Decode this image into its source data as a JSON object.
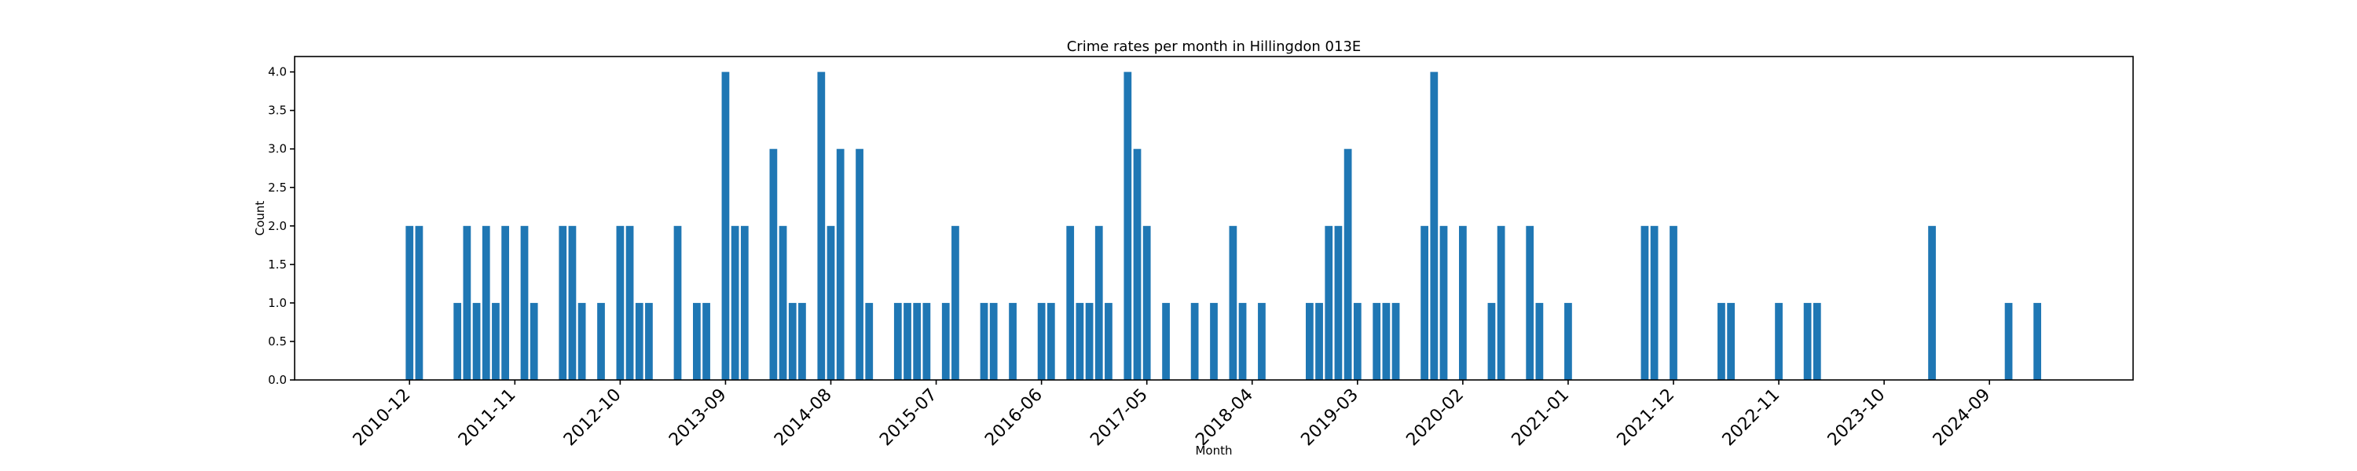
{
  "chart_data": {
    "type": "bar",
    "title": "Crime rates per month in Hillingdon 013E",
    "xlabel": "Month",
    "ylabel": "Count",
    "ylim": [
      0,
      4.2
    ],
    "yticks": [
      "0.0",
      "0.5",
      "1.0",
      "1.5",
      "2.0",
      "2.5",
      "3.0",
      "3.5",
      "4.0"
    ],
    "xticks": [
      "2010-12",
      "2011-11",
      "2012-10",
      "2013-09",
      "2014-08",
      "2015-07",
      "2016-06",
      "2017-05",
      "2018-04",
      "2019-03",
      "2020-02",
      "2021-01",
      "2021-12",
      "2022-11",
      "2023-10",
      "2024-09"
    ],
    "xlim": [
      "2009-12",
      "2025-12"
    ],
    "grid": false,
    "color": "#1f77b4",
    "x": [
      "2010-12",
      "2011-01",
      "2011-05",
      "2011-06",
      "2011-07",
      "2011-08",
      "2011-09",
      "2011-10",
      "2011-12",
      "2012-01",
      "2012-04",
      "2012-05",
      "2012-06",
      "2012-08",
      "2012-10",
      "2012-11",
      "2012-12",
      "2013-01",
      "2013-04",
      "2013-06",
      "2013-07",
      "2013-09",
      "2013-10",
      "2013-11",
      "2014-02",
      "2014-03",
      "2014-04",
      "2014-05",
      "2014-07",
      "2014-08",
      "2014-09",
      "2014-11",
      "2014-12",
      "2015-03",
      "2015-04",
      "2015-05",
      "2015-06",
      "2015-08",
      "2015-09",
      "2015-12",
      "2016-01",
      "2016-03",
      "2016-06",
      "2016-07",
      "2016-09",
      "2016-10",
      "2016-11",
      "2016-12",
      "2017-01",
      "2017-03",
      "2017-04",
      "2017-05",
      "2017-07",
      "2017-10",
      "2017-12",
      "2018-02",
      "2018-03",
      "2018-05",
      "2018-10",
      "2018-11",
      "2018-12",
      "2019-01",
      "2019-02",
      "2019-03",
      "2019-05",
      "2019-06",
      "2019-07",
      "2019-10",
      "2019-11",
      "2019-12",
      "2020-02",
      "2020-05",
      "2020-06",
      "2020-09",
      "2020-10",
      "2021-01",
      "2021-09",
      "2021-10",
      "2021-12",
      "2022-05",
      "2022-06",
      "2022-11",
      "2023-02",
      "2023-03",
      "2024-03",
      "2024-11",
      "2025-02"
    ],
    "values": [
      2,
      2,
      1,
      2,
      1,
      2,
      1,
      2,
      2,
      1,
      2,
      2,
      1,
      1,
      2,
      2,
      1,
      1,
      2,
      1,
      1,
      4,
      2,
      2,
      3,
      2,
      1,
      1,
      4,
      2,
      3,
      3,
      1,
      1,
      1,
      1,
      1,
      1,
      2,
      1,
      1,
      1,
      1,
      1,
      2,
      1,
      1,
      2,
      1,
      4,
      3,
      2,
      1,
      1,
      1,
      2,
      1,
      1,
      1,
      1,
      2,
      2,
      3,
      1,
      1,
      1,
      1,
      2,
      4,
      2,
      2,
      1,
      2,
      2,
      1,
      1,
      2,
      2,
      2,
      1,
      1,
      1,
      1,
      1,
      2,
      1,
      1
    ]
  }
}
